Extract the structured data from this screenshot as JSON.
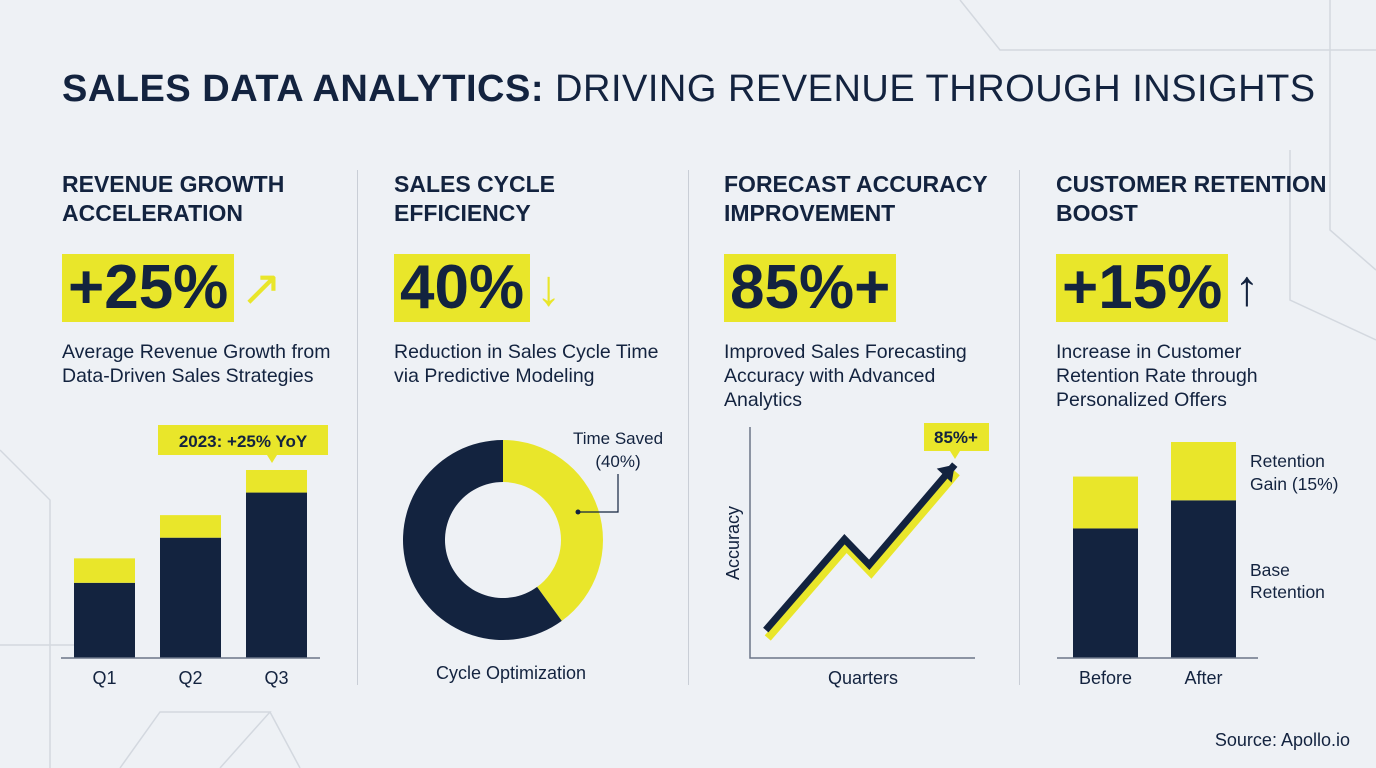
{
  "title": {
    "bold": "SALES DATA ANALYTICS:",
    "rest": " DRIVING REVENUE THROUGH INSIGHTS"
  },
  "colors": {
    "navy": "#13233f",
    "yellow": "#e9e62a",
    "background": "#eef1f5"
  },
  "columns": [
    {
      "heading": "Revenue Growth Acceleration",
      "value": "+25%",
      "icon": "arrow-up-right-icon",
      "icon_glyph": "↗",
      "description": "Average Revenue Growth from Data-Driven Sales Strategies"
    },
    {
      "heading": "Sales Cycle Efficiency",
      "value": "40%",
      "icon": "arrow-down-icon",
      "icon_glyph": "↓",
      "description": "Reduction in Sales Cycle Time via Predictive Modeling"
    },
    {
      "heading": "Forecast Accuracy Improvement",
      "value": "85%+",
      "icon": "",
      "icon_glyph": "",
      "description": "Improved Sales Forecasting Accuracy with Advanced Analytics"
    },
    {
      "heading": "Customer Retention Boost",
      "value": "+15%",
      "icon": "arrow-up-icon",
      "icon_glyph": "↑",
      "description": "Increase in Customer Retention Rate through Personalized Offers"
    }
  ],
  "chart_data": [
    {
      "type": "bar",
      "stacked": true,
      "categories": [
        "Q1",
        "Q2",
        "Q3"
      ],
      "series": [
        {
          "values": [
            40,
            64,
            88
          ]
        },
        {
          "values": [
            13,
            12,
            12
          ]
        }
      ],
      "annotation": "2023: +25% YoY",
      "grid": false
    },
    {
      "type": "pie",
      "donut": true,
      "slices": [
        {
          "label": "Time Saved (40%)",
          "value": 40,
          "color": "#e9e62a"
        },
        {
          "value": 60,
          "color": "#13233f"
        }
      ],
      "caption": "Cycle Optimization"
    },
    {
      "type": "line",
      "xlabel": "Quarters",
      "ylabel": "Accuracy",
      "x": [
        7,
        42,
        53,
        91
      ],
      "y": [
        12,
        51,
        40,
        83
      ],
      "annotation": "85%+",
      "grid": false
    },
    {
      "type": "bar",
      "stacked": true,
      "categories": [
        "Before",
        "After"
      ],
      "series": [
        {
          "name": "Base Retention",
          "values": [
            60,
            73
          ]
        },
        {
          "name": "Retention Gain (15%)",
          "values": [
            24,
            27
          ]
        }
      ],
      "grid": false
    }
  ],
  "labels": {
    "time_saved_1": "Time Saved",
    "time_saved_2": "(40%)",
    "gain_1": "Retention",
    "gain_2": "Gain (15%)",
    "base_1": "Base",
    "base_2": "Retention"
  },
  "source": "Source: Apollo.io"
}
